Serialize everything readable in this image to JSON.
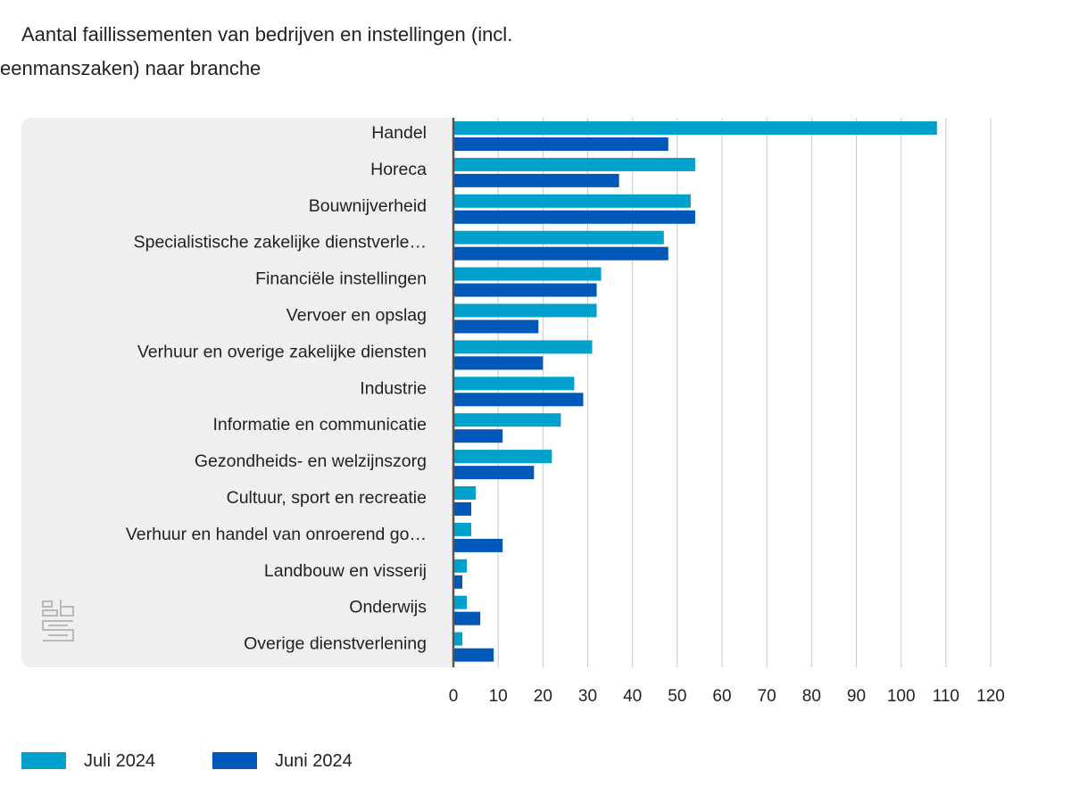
{
  "title": "Aantal faillissementen van bedrijven en instellingen (incl. eenmanszaken) naar branche",
  "logo": {
    "icon": "cbs-logo-icon"
  },
  "chart_data": {
    "type": "bar",
    "orientation": "horizontal",
    "title": "Aantal faillissementen van bedrijven en instellingen (incl. eenmanszaken) naar branche",
    "categories": [
      "Handel",
      "Horeca",
      "Bouwnijverheid",
      "Specialistische zakelijke dienstverle…",
      "Financiële instellingen",
      "Vervoer en opslag",
      "Verhuur en overige zakelijke diensten",
      "Industrie",
      "Informatie en communicatie",
      "Gezondheids- en welzijnszorg",
      "Cultuur, sport en recreatie",
      "Verhuur en handel van onroerend go…",
      "Landbouw en visserij",
      "Onderwijs",
      "Overige dienstverlening"
    ],
    "series": [
      {
        "name": "Juli 2024",
        "color": "#00a1cd",
        "values": [
          108,
          54,
          53,
          47,
          33,
          32,
          31,
          27,
          24,
          22,
          5,
          4,
          3,
          3,
          2
        ]
      },
      {
        "name": "Juni 2024",
        "color": "#0058b8",
        "values": [
          48,
          37,
          54,
          48,
          32,
          19,
          20,
          29,
          11,
          18,
          4,
          11,
          2,
          6,
          9
        ]
      }
    ],
    "xlim": [
      0,
      120
    ],
    "xticks": [
      0,
      10,
      20,
      30,
      40,
      50,
      60,
      70,
      80,
      90,
      100,
      110,
      120
    ],
    "grid": true,
    "legend_position": "bottom-left"
  }
}
